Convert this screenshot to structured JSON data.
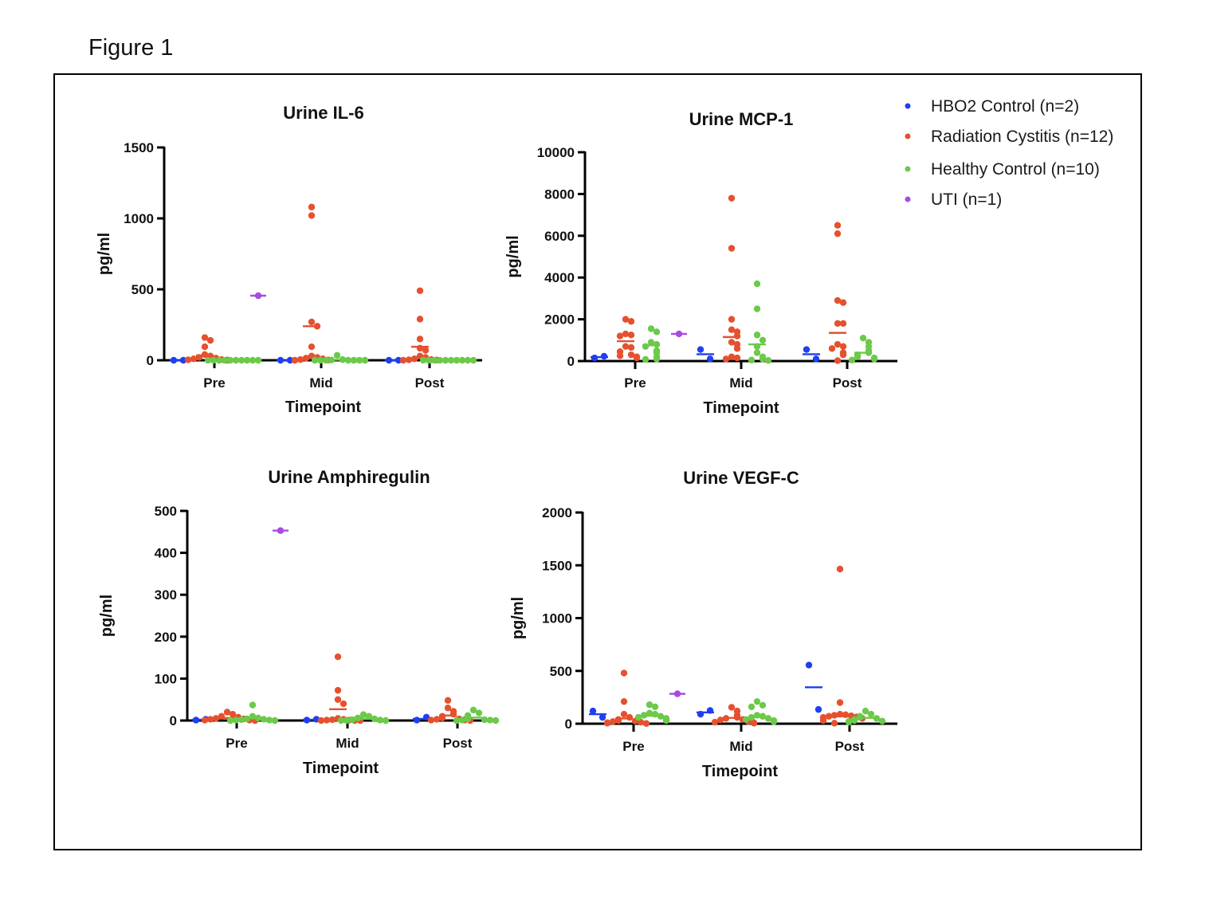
{
  "figure_title": "Figure 1",
  "legend": [
    {
      "name": "HBO2 Control (n=2)",
      "color": "#1f3ff0"
    },
    {
      "name": "Radiation Cystitis (n=12)",
      "color": "#e5512f"
    },
    {
      "name": "Healthy Control (n=10)",
      "color": "#6cc94a"
    },
    {
      "name": "UTI (n=1)",
      "color": "#a94be0"
    }
  ],
  "chart_data": [
    {
      "type": "scatter",
      "title": "Urine IL-6",
      "xlabel": "Timepoint",
      "ylabel": "pg/ml",
      "ylim": [
        0,
        1500
      ],
      "yticks": [
        0,
        500,
        1000,
        1500
      ],
      "categories": [
        "Pre",
        "Mid",
        "Post"
      ],
      "series": [
        {
          "name": "HBO2 Control (n=2)",
          "values": [
            [
              0,
              0
            ],
            [
              0,
              0
            ],
            [
              0,
              0
            ]
          ],
          "mean": [
            0,
            0,
            0
          ]
        },
        {
          "name": "Radiation Cystitis (n=12)",
          "values": [
            [
              160,
              140,
              95,
              40,
              30,
              20,
              15,
              10,
              5,
              3,
              2,
              0
            ],
            [
              1080,
              1020,
              270,
              240,
              95,
              30,
              20,
              15,
              10,
              5,
              2,
              0
            ],
            [
              490,
              290,
              150,
              85,
              70,
              30,
              20,
              10,
              5,
              3,
              2,
              0
            ]
          ],
          "mean": [
            35,
            240,
            95
          ]
        },
        {
          "name": "Healthy Control (n=10)",
          "values": [
            [
              0,
              0,
              0,
              0,
              0,
              0,
              0,
              0,
              0,
              0
            ],
            [
              35,
              5,
              2,
              0,
              0,
              0,
              0,
              0,
              0,
              0
            ],
            [
              0,
              0,
              0,
              0,
              0,
              0,
              0,
              0,
              0,
              0
            ]
          ],
          "mean": [
            0,
            4,
            0
          ]
        },
        {
          "name": "UTI (n=1)",
          "values": [
            [
              455
            ],
            [],
            []
          ],
          "mean": [
            455,
            null,
            null
          ]
        }
      ]
    },
    {
      "type": "scatter",
      "title": "Urine MCP-1",
      "xlabel": "Timepoint",
      "ylabel": "pg/ml",
      "ylim": [
        0,
        10000
      ],
      "yticks": [
        0,
        2000,
        4000,
        6000,
        8000,
        10000
      ],
      "categories": [
        "Pre",
        "Mid",
        "Post"
      ],
      "series": [
        {
          "name": "HBO2 Control (n=2)",
          "values": [
            [
              150,
              230
            ],
            [
              550,
              100
            ],
            [
              550,
              100
            ]
          ],
          "mean": [
            190,
            325,
            325
          ]
        },
        {
          "name": "Radiation Cystitis (n=12)",
          "values": [
            [
              2000,
              1900,
              1300,
              1250,
              1200,
              700,
              650,
              450,
              300,
              250,
              200,
              150
            ],
            [
              7800,
              5400,
              2000,
              1500,
              1400,
              1200,
              900,
              800,
              600,
              200,
              150,
              100
            ],
            [
              6500,
              6100,
              2900,
              2800,
              1800,
              1800,
              800,
              700,
              600,
              400,
              300,
              20
            ]
          ],
          "mean": [
            950,
            1150,
            1350
          ]
        },
        {
          "name": "Healthy Control (n=10)",
          "values": [
            [
              1550,
              1400,
              900,
              800,
              700,
              500,
              400,
              200,
              100,
              80
            ],
            [
              3700,
              2500,
              1250,
              1000,
              700,
              400,
              200,
              100,
              50,
              30
            ],
            [
              1100,
              900,
              700,
              500,
              400,
              300,
              200,
              150,
              100,
              50
            ]
          ],
          "mean": [
            750,
            800,
            400
          ]
        },
        {
          "name": "UTI (n=1)",
          "values": [
            [
              1300
            ],
            [],
            []
          ],
          "mean": [
            1300,
            null,
            null
          ]
        }
      ]
    },
    {
      "type": "scatter",
      "title": "Urine Amphiregulin",
      "xlabel": "Timepoint",
      "ylabel": "pg/ml",
      "ylim": [
        0,
        500
      ],
      "yticks": [
        0,
        100,
        200,
        300,
        400,
        500
      ],
      "categories": [
        "Pre",
        "Mid",
        "Post"
      ],
      "series": [
        {
          "name": "HBO2 Control (n=2)",
          "values": [
            [
              1,
              3
            ],
            [
              1,
              3
            ],
            [
              1,
              8
            ]
          ],
          "mean": [
            2,
            2,
            4
          ]
        },
        {
          "name": "Radiation Cystitis (n=12)",
          "values": [
            [
              20,
              15,
              10,
              8,
              6,
              5,
              4,
              3,
              2,
              1,
              1,
              0
            ],
            [
              152,
              72,
              50,
              40,
              5,
              3,
              2,
              1,
              1,
              0,
              0,
              0
            ],
            [
              48,
              30,
              22,
              15,
              10,
              6,
              4,
              3,
              2,
              1,
              1,
              0
            ]
          ],
          "mean": [
            6,
            27,
            12
          ]
        },
        {
          "name": "Healthy Control (n=10)",
          "values": [
            [
              37,
              10,
              6,
              4,
              3,
              2,
              1,
              1,
              0,
              0
            ],
            [
              14,
              10,
              6,
              4,
              2,
              1,
              1,
              0,
              0,
              0
            ],
            [
              25,
              18,
              12,
              8,
              4,
              2,
              1,
              1,
              0,
              0
            ]
          ],
          "mean": [
            6,
            4,
            7
          ]
        },
        {
          "name": "UTI (n=1)",
          "values": [
            [
              453
            ],
            [],
            []
          ],
          "mean": [
            453,
            null,
            null
          ]
        }
      ]
    },
    {
      "type": "scatter",
      "title": "Urine VEGF-C",
      "xlabel": "Timepoint",
      "ylabel": "pg/ml",
      "ylim": [
        0,
        2000
      ],
      "yticks": [
        0,
        500,
        1000,
        1500,
        2000
      ],
      "categories": [
        "Pre",
        "Mid",
        "Post"
      ],
      "series": [
        {
          "name": "HBO2 Control (n=2)",
          "values": [
            [
              120,
              60
            ],
            [
              90,
              125
            ],
            [
              555,
              135
            ]
          ],
          "mean": [
            90,
            107,
            345
          ]
        },
        {
          "name": "Radiation Cystitis (n=12)",
          "values": [
            [
              480,
              210,
              90,
              60,
              40,
              30,
              25,
              20,
              15,
              10,
              5,
              2
            ],
            [
              155,
              120,
              80,
              60,
              50,
              40,
              35,
              30,
              20,
              15,
              10,
              5
            ],
            [
              1465,
              200,
              90,
              85,
              80,
              75,
              70,
              65,
              60,
              50,
              30,
              5
            ]
          ],
          "mean": [
            50,
            55,
            70
          ]
        },
        {
          "name": "Healthy Control (n=10)",
          "values": [
            [
              180,
              160,
              100,
              90,
              80,
              70,
              60,
              50,
              40,
              30
            ],
            [
              210,
              175,
              160,
              80,
              70,
              60,
              50,
              40,
              30,
              20
            ],
            [
              120,
              90,
              70,
              60,
              50,
              40,
              30,
              25,
              20,
              15
            ]
          ],
          "mean": [
            75,
            65,
            55
          ]
        },
        {
          "name": "UTI (n=1)",
          "values": [
            [
              283
            ],
            [],
            []
          ],
          "mean": [
            283,
            null,
            null
          ]
        }
      ]
    }
  ]
}
